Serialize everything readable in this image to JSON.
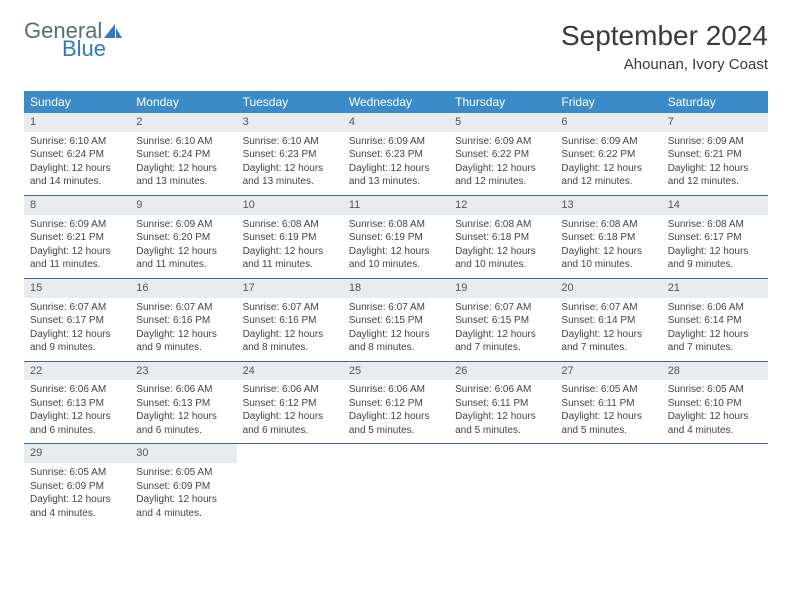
{
  "brand": {
    "text1": "General",
    "text2": "Blue",
    "icon_color": "#2f7bbf",
    "text1_color": "#5a6a7a"
  },
  "title": "September 2024",
  "location": "Ahounan, Ivory Coast",
  "colors": {
    "header_bg": "#3b8bc9",
    "header_text": "#ffffff",
    "daynum_bg": "#e9ecef",
    "rule": "#3b6a9a"
  },
  "weekdays": [
    "Sunday",
    "Monday",
    "Tuesday",
    "Wednesday",
    "Thursday",
    "Friday",
    "Saturday"
  ],
  "start_offset": 0,
  "days": [
    {
      "n": 1,
      "sr": "6:10 AM",
      "ss": "6:24 PM",
      "dl": "12 hours and 14 minutes."
    },
    {
      "n": 2,
      "sr": "6:10 AM",
      "ss": "6:24 PM",
      "dl": "12 hours and 13 minutes."
    },
    {
      "n": 3,
      "sr": "6:10 AM",
      "ss": "6:23 PM",
      "dl": "12 hours and 13 minutes."
    },
    {
      "n": 4,
      "sr": "6:09 AM",
      "ss": "6:23 PM",
      "dl": "12 hours and 13 minutes."
    },
    {
      "n": 5,
      "sr": "6:09 AM",
      "ss": "6:22 PM",
      "dl": "12 hours and 12 minutes."
    },
    {
      "n": 6,
      "sr": "6:09 AM",
      "ss": "6:22 PM",
      "dl": "12 hours and 12 minutes."
    },
    {
      "n": 7,
      "sr": "6:09 AM",
      "ss": "6:21 PM",
      "dl": "12 hours and 12 minutes."
    },
    {
      "n": 8,
      "sr": "6:09 AM",
      "ss": "6:21 PM",
      "dl": "12 hours and 11 minutes."
    },
    {
      "n": 9,
      "sr": "6:09 AM",
      "ss": "6:20 PM",
      "dl": "12 hours and 11 minutes."
    },
    {
      "n": 10,
      "sr": "6:08 AM",
      "ss": "6:19 PM",
      "dl": "12 hours and 11 minutes."
    },
    {
      "n": 11,
      "sr": "6:08 AM",
      "ss": "6:19 PM",
      "dl": "12 hours and 10 minutes."
    },
    {
      "n": 12,
      "sr": "6:08 AM",
      "ss": "6:18 PM",
      "dl": "12 hours and 10 minutes."
    },
    {
      "n": 13,
      "sr": "6:08 AM",
      "ss": "6:18 PM",
      "dl": "12 hours and 10 minutes."
    },
    {
      "n": 14,
      "sr": "6:08 AM",
      "ss": "6:17 PM",
      "dl": "12 hours and 9 minutes."
    },
    {
      "n": 15,
      "sr": "6:07 AM",
      "ss": "6:17 PM",
      "dl": "12 hours and 9 minutes."
    },
    {
      "n": 16,
      "sr": "6:07 AM",
      "ss": "6:16 PM",
      "dl": "12 hours and 9 minutes."
    },
    {
      "n": 17,
      "sr": "6:07 AM",
      "ss": "6:16 PM",
      "dl": "12 hours and 8 minutes."
    },
    {
      "n": 18,
      "sr": "6:07 AM",
      "ss": "6:15 PM",
      "dl": "12 hours and 8 minutes."
    },
    {
      "n": 19,
      "sr": "6:07 AM",
      "ss": "6:15 PM",
      "dl": "12 hours and 7 minutes."
    },
    {
      "n": 20,
      "sr": "6:07 AM",
      "ss": "6:14 PM",
      "dl": "12 hours and 7 minutes."
    },
    {
      "n": 21,
      "sr": "6:06 AM",
      "ss": "6:14 PM",
      "dl": "12 hours and 7 minutes."
    },
    {
      "n": 22,
      "sr": "6:06 AM",
      "ss": "6:13 PM",
      "dl": "12 hours and 6 minutes."
    },
    {
      "n": 23,
      "sr": "6:06 AM",
      "ss": "6:13 PM",
      "dl": "12 hours and 6 minutes."
    },
    {
      "n": 24,
      "sr": "6:06 AM",
      "ss": "6:12 PM",
      "dl": "12 hours and 6 minutes."
    },
    {
      "n": 25,
      "sr": "6:06 AM",
      "ss": "6:12 PM",
      "dl": "12 hours and 5 minutes."
    },
    {
      "n": 26,
      "sr": "6:06 AM",
      "ss": "6:11 PM",
      "dl": "12 hours and 5 minutes."
    },
    {
      "n": 27,
      "sr": "6:05 AM",
      "ss": "6:11 PM",
      "dl": "12 hours and 5 minutes."
    },
    {
      "n": 28,
      "sr": "6:05 AM",
      "ss": "6:10 PM",
      "dl": "12 hours and 4 minutes."
    },
    {
      "n": 29,
      "sr": "6:05 AM",
      "ss": "6:09 PM",
      "dl": "12 hours and 4 minutes."
    },
    {
      "n": 30,
      "sr": "6:05 AM",
      "ss": "6:09 PM",
      "dl": "12 hours and 4 minutes."
    }
  ],
  "labels": {
    "sunrise": "Sunrise:",
    "sunset": "Sunset:",
    "daylight": "Daylight:"
  }
}
